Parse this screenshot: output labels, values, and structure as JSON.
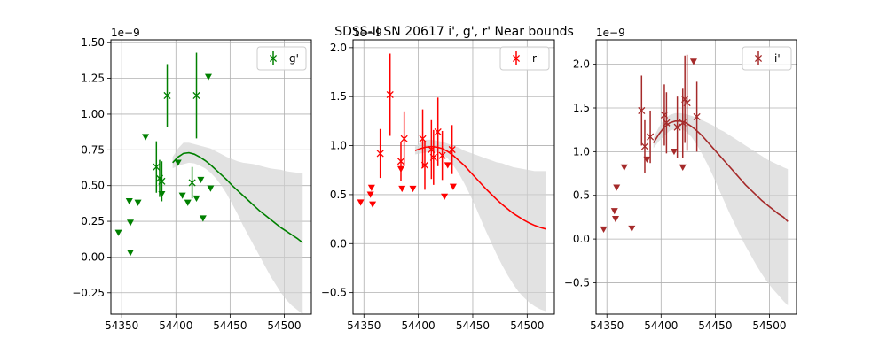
{
  "figure": {
    "suptitle": "SDSS-II SN 20617  i', g', r' Near bounds"
  },
  "colors": {
    "g": "#008000",
    "r": "#ff0000",
    "i": "#a52a2a",
    "band": "#d3d3d3",
    "grid": "#b0b0b0"
  },
  "chart_data": [
    {
      "type": "scatter",
      "band": "g'",
      "legend": "g'",
      "legend_position": "upper right",
      "grid": true,
      "offset_label": "1e−9",
      "xlim": [
        54340,
        54525
      ],
      "ylim": [
        -0.4,
        1.52
      ],
      "xticks": [
        54350,
        54400,
        54450,
        54500
      ],
      "yticks": [
        -0.25,
        0.0,
        0.25,
        0.5,
        0.75,
        1.0,
        1.25,
        1.5
      ],
      "ytick_labels": [
        "−0.25",
        "0.00",
        "0.25",
        "0.50",
        "0.75",
        "1.00",
        "1.25",
        "1.50"
      ],
      "detections": [
        {
          "x": 54382,
          "y": 0.63,
          "err": 0.18
        },
        {
          "x": 54385,
          "y": 0.55,
          "err": 0.13
        },
        {
          "x": 54387,
          "y": 0.53,
          "err": 0.14
        },
        {
          "x": 54392,
          "y": 1.13,
          "err": 0.22
        },
        {
          "x": 54415,
          "y": 0.52,
          "err": 0.11
        },
        {
          "x": 54419,
          "y": 1.13,
          "err": 0.3
        }
      ],
      "upper_limits": [
        {
          "x": 54347,
          "y": 0.17
        },
        {
          "x": 54357,
          "y": 0.39
        },
        {
          "x": 54358,
          "y": 0.24
        },
        {
          "x": 54358,
          "y": 0.03
        },
        {
          "x": 54365,
          "y": 0.38
        },
        {
          "x": 54372,
          "y": 0.84
        },
        {
          "x": 54387,
          "y": 0.44
        },
        {
          "x": 54402,
          "y": 0.66
        },
        {
          "x": 54406,
          "y": 0.43
        },
        {
          "x": 54411,
          "y": 0.38
        },
        {
          "x": 54419,
          "y": 0.41
        },
        {
          "x": 54423,
          "y": 0.54
        },
        {
          "x": 54425,
          "y": 0.27
        },
        {
          "x": 54430,
          "y": 1.26
        },
        {
          "x": 54432,
          "y": 0.48
        }
      ],
      "model": {
        "x": [
          54397,
          54402,
          54407,
          54412,
          54417,
          54422,
          54427,
          54432,
          54437,
          54442,
          54447,
          54452,
          54457,
          54462,
          54467,
          54472,
          54477,
          54482,
          54487,
          54492,
          54497,
          54502,
          54507,
          54512,
          54517
        ],
        "y": [
          0.66,
          0.7,
          0.725,
          0.73,
          0.72,
          0.7,
          0.675,
          0.645,
          0.61,
          0.575,
          0.54,
          0.5,
          0.465,
          0.43,
          0.395,
          0.36,
          0.325,
          0.295,
          0.265,
          0.235,
          0.205,
          0.18,
          0.155,
          0.13,
          0.1
        ],
        "upper": [
          0.7,
          0.76,
          0.8,
          0.8,
          0.79,
          0.78,
          0.77,
          0.76,
          0.74,
          0.72,
          0.7,
          0.685,
          0.67,
          0.66,
          0.655,
          0.65,
          0.64,
          0.63,
          0.62,
          0.615,
          0.61,
          0.6,
          0.595,
          0.59,
          0.585
        ],
        "lower": [
          0.62,
          0.64,
          0.65,
          0.66,
          0.655,
          0.64,
          0.62,
          0.59,
          0.55,
          0.5,
          0.44,
          0.37,
          0.3,
          0.22,
          0.15,
          0.08,
          0.01,
          -0.06,
          -0.13,
          -0.19,
          -0.25,
          -0.3,
          -0.34,
          -0.37,
          -0.4
        ]
      }
    },
    {
      "type": "scatter",
      "band": "r'",
      "legend": "r'",
      "legend_position": "upper right",
      "grid": true,
      "offset_label": "1e−9",
      "xlim": [
        54340,
        54525
      ],
      "ylim": [
        -0.72,
        2.08
      ],
      "xticks": [
        54350,
        54400,
        54450,
        54500
      ],
      "yticks": [
        -0.5,
        0.0,
        0.5,
        1.0,
        1.5,
        2.0
      ],
      "ytick_labels": [
        "−0.5",
        "0.0",
        "0.5",
        "1.0",
        "1.5",
        "2.0"
      ],
      "detections": [
        {
          "x": 54365,
          "y": 0.92,
          "err": 0.25
        },
        {
          "x": 54374,
          "y": 1.52,
          "err": 0.42
        },
        {
          "x": 54384,
          "y": 0.84,
          "err": 0.2
        },
        {
          "x": 54387,
          "y": 1.07,
          "err": 0.28
        },
        {
          "x": 54404,
          "y": 1.07,
          "err": 0.3
        },
        {
          "x": 54406,
          "y": 0.8,
          "err": 0.25
        },
        {
          "x": 54412,
          "y": 0.96,
          "err": 0.3
        },
        {
          "x": 54414,
          "y": 0.88,
          "err": 0.28
        },
        {
          "x": 54418,
          "y": 1.14,
          "err": 0.35
        },
        {
          "x": 54422,
          "y": 0.9,
          "err": 0.25
        },
        {
          "x": 54431,
          "y": 0.96,
          "err": 0.25
        }
      ],
      "upper_limits": [
        {
          "x": 54347,
          "y": 0.42
        },
        {
          "x": 54356,
          "y": 0.5
        },
        {
          "x": 54357,
          "y": 0.57
        },
        {
          "x": 54358,
          "y": 0.4
        },
        {
          "x": 54384,
          "y": 0.76
        },
        {
          "x": 54385,
          "y": 0.56
        },
        {
          "x": 54395,
          "y": 0.56
        },
        {
          "x": 54424,
          "y": 0.48
        },
        {
          "x": 54427,
          "y": 0.8
        },
        {
          "x": 54432,
          "y": 0.58
        }
      ],
      "model": {
        "x": [
          54397,
          54402,
          54407,
          54412,
          54417,
          54422,
          54427,
          54432,
          54437,
          54442,
          54447,
          54452,
          54457,
          54462,
          54467,
          54472,
          54477,
          54482,
          54487,
          54492,
          54497,
          54502,
          54507,
          54512,
          54517
        ],
        "y": [
          0.95,
          0.97,
          0.985,
          0.99,
          0.985,
          0.97,
          0.94,
          0.9,
          0.85,
          0.8,
          0.74,
          0.68,
          0.62,
          0.56,
          0.505,
          0.45,
          0.4,
          0.355,
          0.31,
          0.275,
          0.24,
          0.21,
          0.185,
          0.165,
          0.15
        ],
        "upper": [
          0.99,
          1.03,
          1.06,
          1.06,
          1.05,
          1.04,
          1.02,
          1.0,
          0.98,
          0.95,
          0.93,
          0.91,
          0.89,
          0.87,
          0.85,
          0.83,
          0.82,
          0.8,
          0.78,
          0.77,
          0.76,
          0.75,
          0.74,
          0.74,
          0.74
        ],
        "lower": [
          0.91,
          0.92,
          0.93,
          0.94,
          0.935,
          0.91,
          0.87,
          0.8,
          0.72,
          0.62,
          0.51,
          0.39,
          0.26,
          0.13,
          0.01,
          -0.11,
          -0.22,
          -0.32,
          -0.41,
          -0.49,
          -0.55,
          -0.6,
          -0.64,
          -0.67,
          -0.69
        ]
      }
    },
    {
      "type": "scatter",
      "band": "i'",
      "legend": "i'",
      "legend_position": "upper right",
      "grid": true,
      "offset_label": "1e−9",
      "xlim": [
        54340,
        54525
      ],
      "ylim": [
        -0.86,
        2.28
      ],
      "xticks": [
        54350,
        54400,
        54450,
        54500
      ],
      "yticks": [
        -0.5,
        0.0,
        0.5,
        1.0,
        1.5,
        2.0
      ],
      "ytick_labels": [
        "−0.5",
        "0.0",
        "0.5",
        "1.0",
        "1.5",
        "2.0"
      ],
      "detections": [
        {
          "x": 54382,
          "y": 1.47,
          "err": 0.4
        },
        {
          "x": 54385,
          "y": 1.06,
          "err": 0.3
        },
        {
          "x": 54390,
          "y": 1.17,
          "err": 0.3
        },
        {
          "x": 54403,
          "y": 1.42,
          "err": 0.35
        },
        {
          "x": 54405,
          "y": 1.33,
          "err": 0.35
        },
        {
          "x": 54415,
          "y": 1.28,
          "err": 0.35
        },
        {
          "x": 54420,
          "y": 1.33,
          "err": 0.4
        },
        {
          "x": 54422,
          "y": 1.6,
          "err": 0.5
        },
        {
          "x": 54424,
          "y": 1.56,
          "err": 0.55
        },
        {
          "x": 54433,
          "y": 1.4,
          "err": 0.4
        }
      ],
      "upper_limits": [
        {
          "x": 54347,
          "y": 0.11
        },
        {
          "x": 54357,
          "y": 0.32
        },
        {
          "x": 54358,
          "y": 0.23
        },
        {
          "x": 54359,
          "y": 0.59
        },
        {
          "x": 54366,
          "y": 0.82
        },
        {
          "x": 54373,
          "y": 0.12
        },
        {
          "x": 54387,
          "y": 0.91
        },
        {
          "x": 54412,
          "y": 1.0
        },
        {
          "x": 54420,
          "y": 0.82
        },
        {
          "x": 54430,
          "y": 2.03
        }
      ],
      "model": {
        "x": [
          54393,
          54398,
          54403,
          54408,
          54413,
          54418,
          54423,
          54428,
          54433,
          54438,
          54443,
          54448,
          54453,
          54458,
          54463,
          54468,
          54473,
          54478,
          54483,
          54488,
          54493,
          54498,
          54503,
          54508,
          54513,
          54517
        ],
        "y": [
          1.1,
          1.2,
          1.28,
          1.33,
          1.35,
          1.35,
          1.33,
          1.29,
          1.24,
          1.18,
          1.11,
          1.04,
          0.97,
          0.9,
          0.83,
          0.76,
          0.69,
          0.62,
          0.56,
          0.5,
          0.44,
          0.39,
          0.34,
          0.29,
          0.25,
          0.2
        ],
        "upper": [
          1.16,
          1.28,
          1.38,
          1.42,
          1.44,
          1.44,
          1.43,
          1.41,
          1.39,
          1.36,
          1.33,
          1.3,
          1.26,
          1.23,
          1.19,
          1.15,
          1.11,
          1.07,
          1.03,
          0.99,
          0.95,
          0.91,
          0.88,
          0.85,
          0.82,
          0.8
        ],
        "lower": [
          1.04,
          1.12,
          1.18,
          1.24,
          1.26,
          1.26,
          1.23,
          1.17,
          1.08,
          0.97,
          0.85,
          0.72,
          0.58,
          0.44,
          0.3,
          0.17,
          0.04,
          -0.08,
          -0.19,
          -0.3,
          -0.4,
          -0.49,
          -0.57,
          -0.64,
          -0.71,
          -0.76
        ]
      }
    }
  ]
}
